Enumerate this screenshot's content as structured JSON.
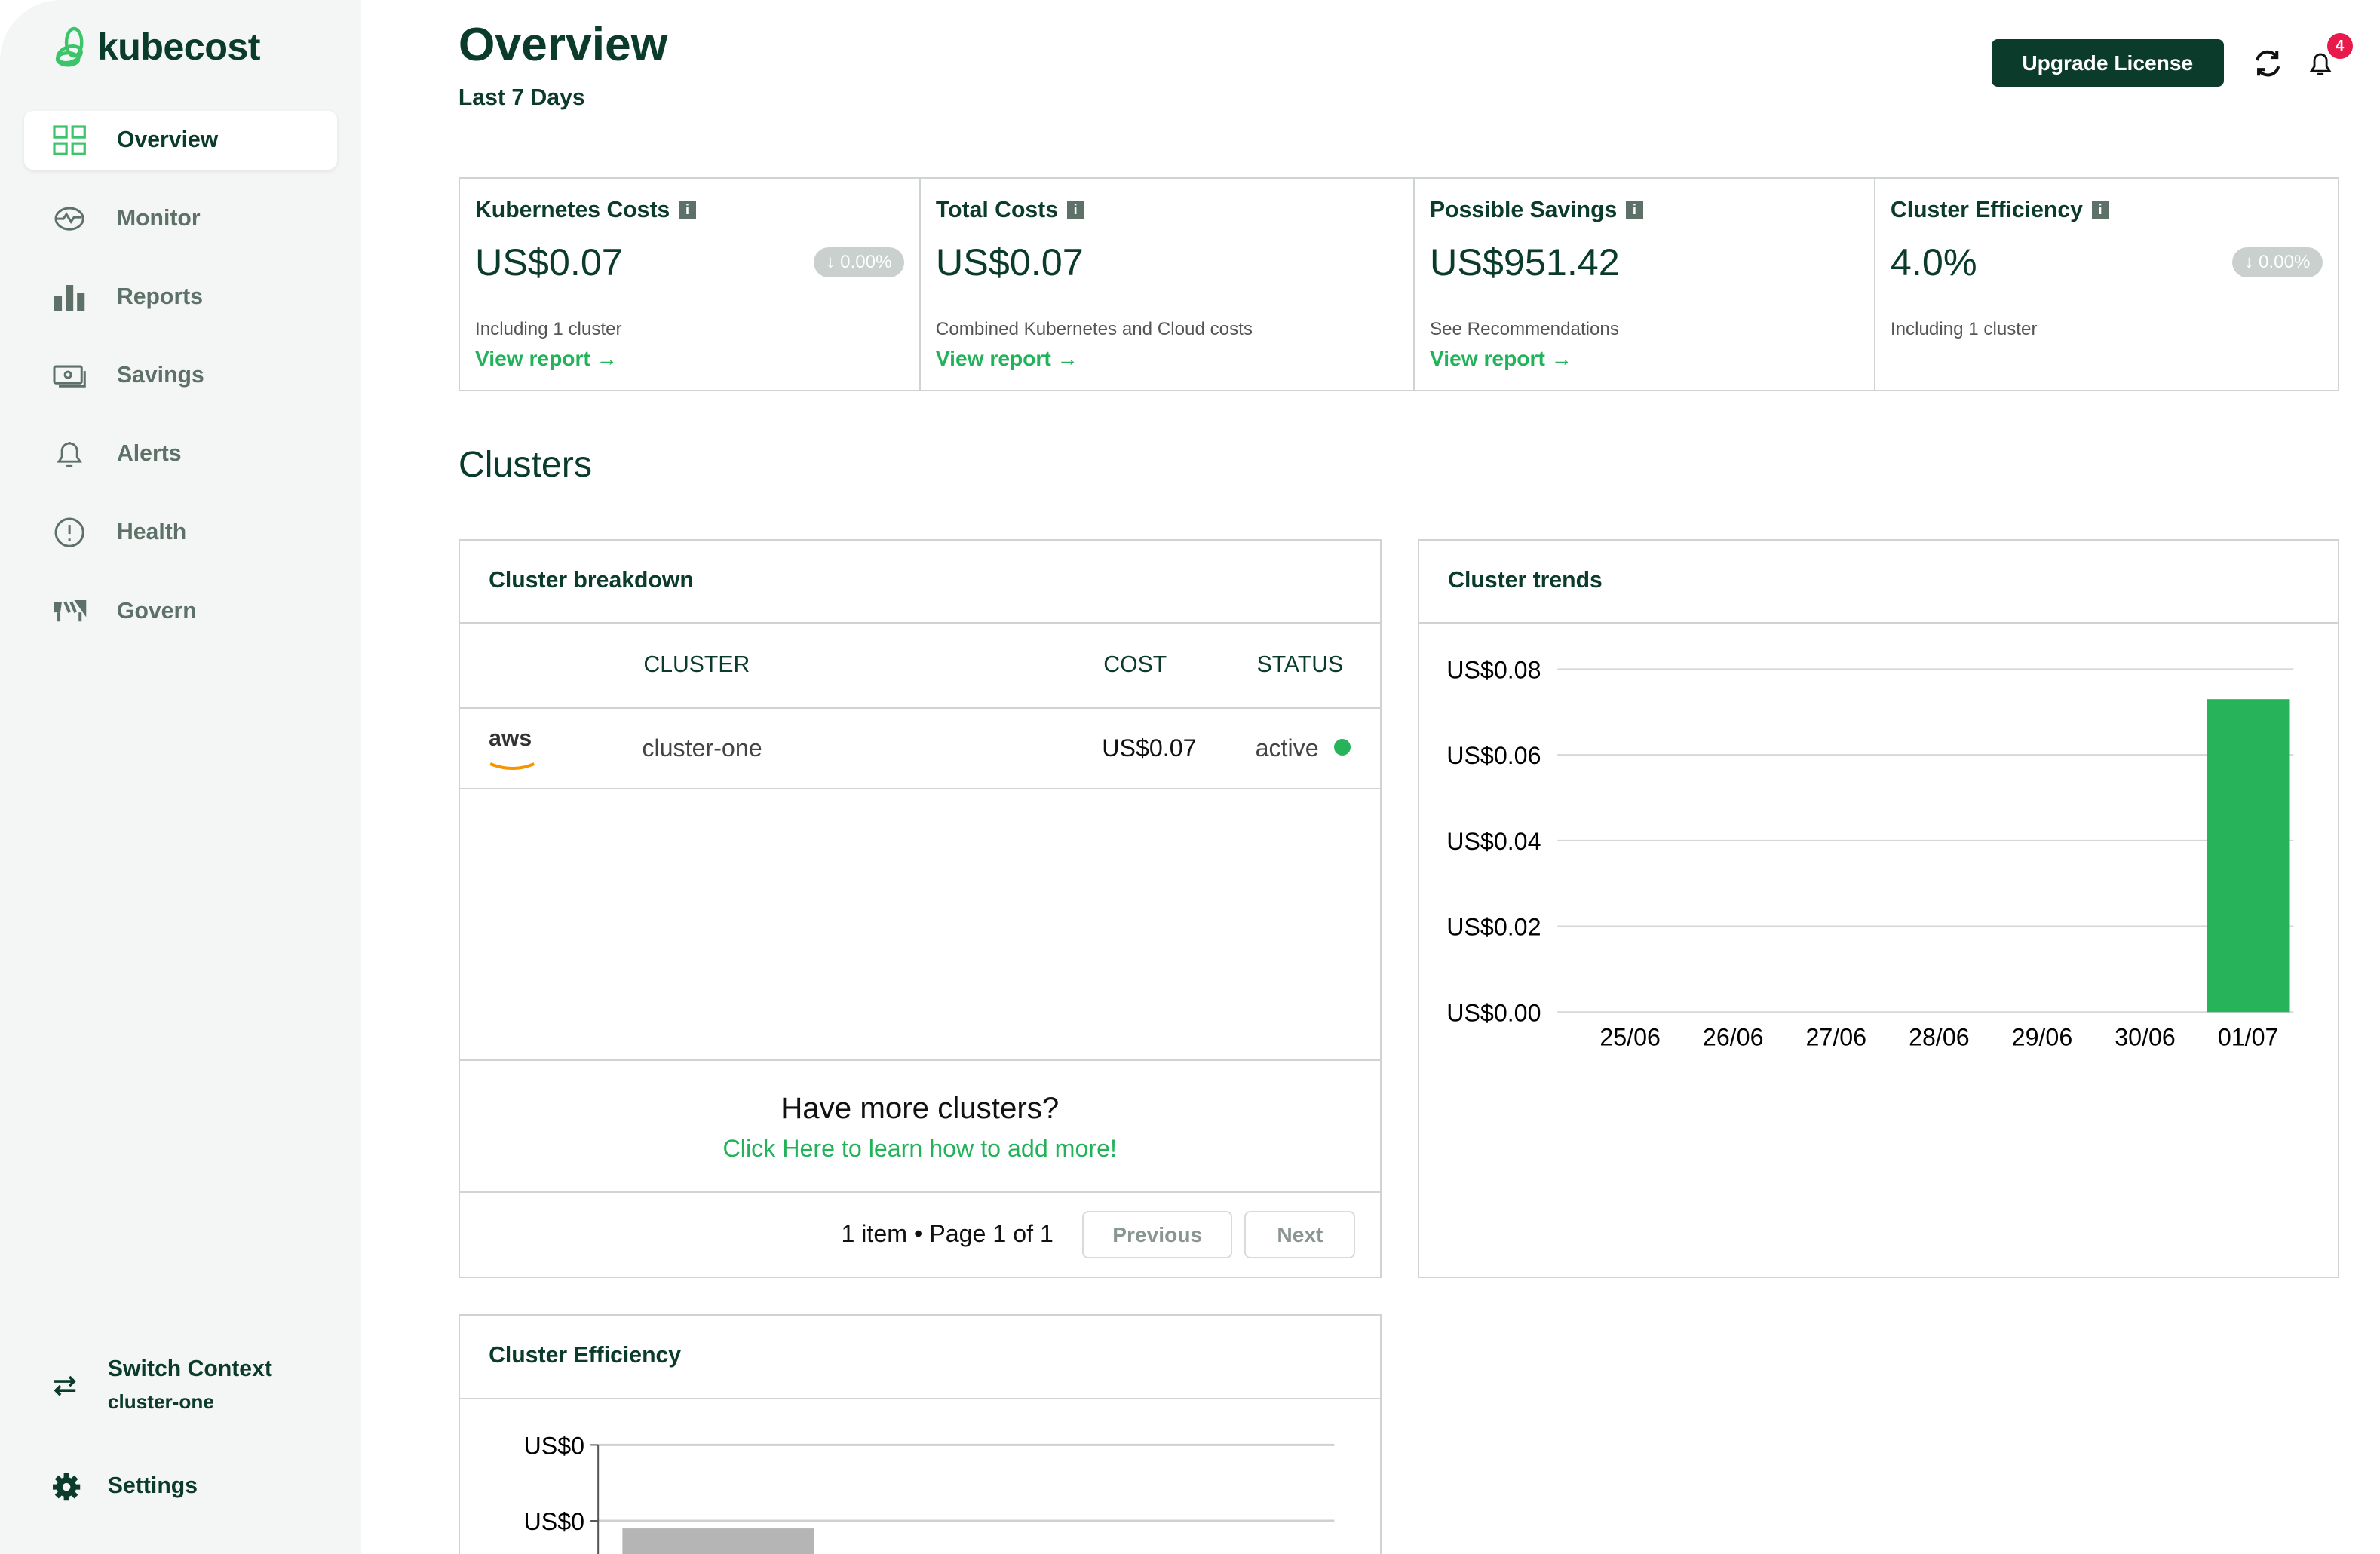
{
  "app": {
    "name": "kubecost"
  },
  "sidebar": {
    "items": [
      {
        "label": "Overview",
        "icon": "grid-icon",
        "active": true
      },
      {
        "label": "Monitor",
        "icon": "monitor-pulse-icon"
      },
      {
        "label": "Reports",
        "icon": "bar-chart-icon"
      },
      {
        "label": "Savings",
        "icon": "money-icon"
      },
      {
        "label": "Alerts",
        "icon": "bell-icon"
      },
      {
        "label": "Health",
        "icon": "alert-circle-icon"
      },
      {
        "label": "Govern",
        "icon": "barrier-icon"
      }
    ],
    "switch_context": {
      "label": "Switch Context",
      "value": "cluster-one"
    },
    "settings": "Settings"
  },
  "header": {
    "title": "Overview",
    "subtitle": "Last 7 Days",
    "upgrade": "Upgrade License",
    "notifications": "4"
  },
  "cards": [
    {
      "title": "Kubernetes Costs",
      "value": "US$0.07",
      "change": "0.00%",
      "desc": "Including 1 cluster",
      "link": "View report →"
    },
    {
      "title": "Total Costs",
      "value": "US$0.07",
      "desc": "Combined Kubernetes and Cloud costs",
      "link": "View report →"
    },
    {
      "title": "Possible Savings",
      "value": "US$951.42",
      "desc": "See Recommendations",
      "link": "View report →"
    },
    {
      "title": "Cluster Efficiency",
      "value": "4.0%",
      "change": "0.00%",
      "desc": "Including 1 cluster"
    }
  ],
  "clusters": {
    "heading": "Clusters",
    "breakdown": {
      "title": "Cluster breakdown",
      "columns": [
        "CLUSTER",
        "COST",
        "STATUS"
      ],
      "rows": [
        {
          "provider": "aws",
          "cluster": "cluster-one",
          "cost": "US$0.07",
          "status": "active"
        }
      ],
      "more_title": "Have more clusters?",
      "more_link": "Click Here to learn how to add more!",
      "pagination": "1 item • Page 1 of 1",
      "previous": "Previous",
      "next": "Next"
    },
    "trends": {
      "title": "Cluster trends"
    },
    "efficiency": {
      "title": "Cluster Efficiency"
    }
  },
  "chart_data": [
    {
      "type": "bar",
      "title": "Cluster trends",
      "categories": [
        "25/06",
        "26/06",
        "27/06",
        "28/06",
        "29/06",
        "30/06",
        "01/07"
      ],
      "values": [
        0,
        0,
        0,
        0,
        0,
        0,
        0.073
      ],
      "yticks": [
        "US$0.00",
        "US$0.02",
        "US$0.04",
        "US$0.06",
        "US$0.08"
      ],
      "ylim": [
        0,
        0.08
      ],
      "grid": true,
      "color": "#27b35a"
    },
    {
      "type": "bar",
      "title": "Cluster Efficiency",
      "yticks": [
        "US$0",
        "US$0"
      ],
      "color": "#b5b5b5",
      "grid": true
    }
  ]
}
